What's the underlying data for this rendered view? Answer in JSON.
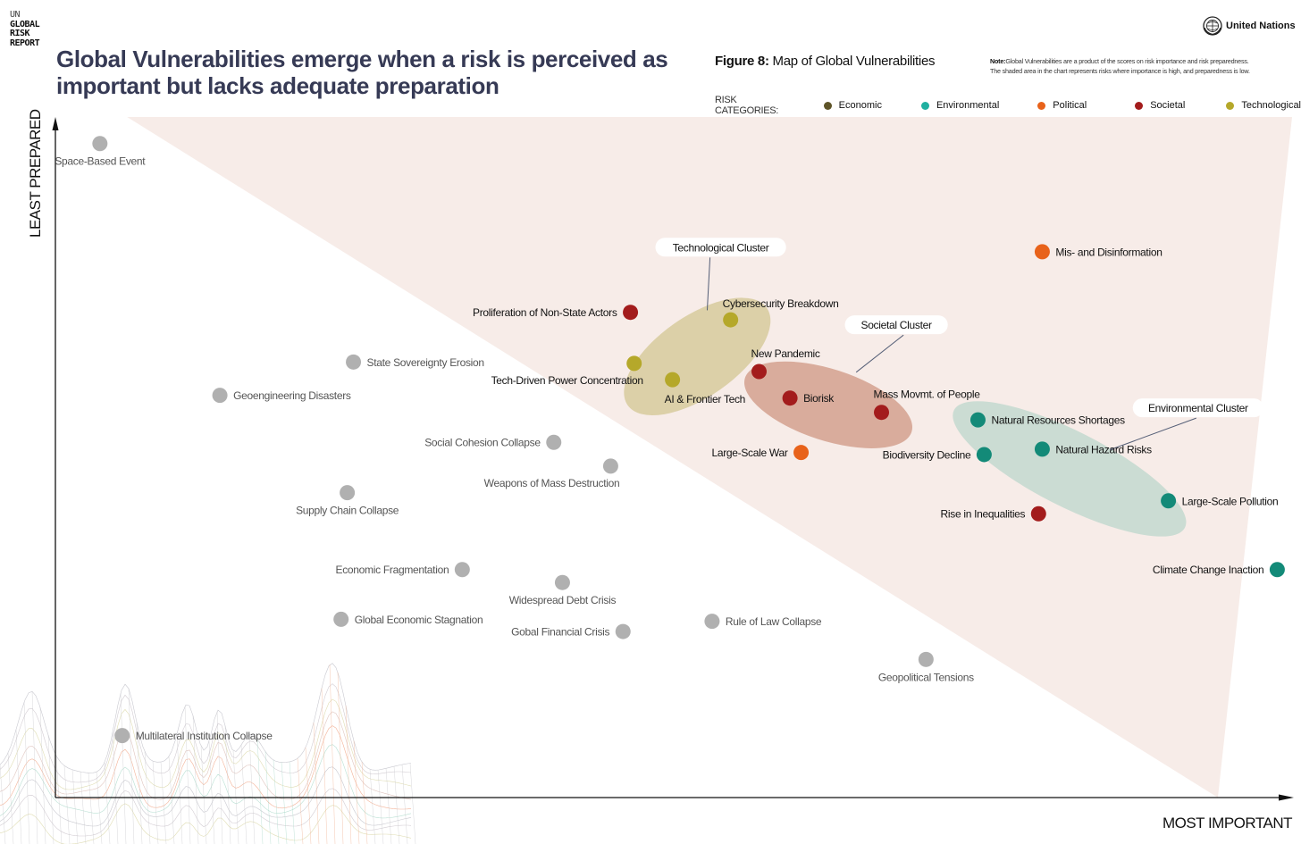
{
  "brand": {
    "line1": "UN",
    "line2": "GLOBAL",
    "line3": "RISK",
    "line4": "REPORT"
  },
  "headline": "Global Vulnerabilities emerge when a risk is perceived as important but lacks adequate preparation",
  "figure": {
    "label": "Figure 8:",
    "title": "Map of Global Vulnerabilities"
  },
  "note": {
    "label": "Note:",
    "line1": "Global Vulnerabilities are a product of the scores on risk importance and risk preparedness.",
    "line2": "The shaded area in the chart represents risks where importance is high, and preparedness is low."
  },
  "org": {
    "name": "United Nations",
    "icon": "un-emblem-icon"
  },
  "legend": {
    "title": "RISK CATEGORIES:",
    "items": [
      {
        "name": "Economic",
        "color": "#5e5428"
      },
      {
        "name": "Environmental",
        "color": "#1fb0a0"
      },
      {
        "name": "Political",
        "color": "#e8621a"
      },
      {
        "name": "Societal",
        "color": "#a31c1c"
      },
      {
        "name": "Technological",
        "color": "#b5a82a"
      }
    ]
  },
  "colors": {
    "uncategorized": "#b0b0b0",
    "Economic": "#5e5428",
    "Environmental": "#138a78",
    "Political": "#e8621a",
    "Societal": "#a31c1c",
    "Technological": "#b5a82a",
    "shade": "#f7ece8",
    "cluster_tech": "#dcd0a8",
    "cluster_soc": "#d9ac9c",
    "cluster_env": "#cbdcd3",
    "headline": "#363a55"
  },
  "chart_data": {
    "type": "scatter",
    "title": "Map of Global Vulnerabilities",
    "xlabel": "MOST IMPORTANT",
    "ylabel": "LEAST PREPARED",
    "x_range": [
      0,
      100
    ],
    "y_range": [
      0,
      100
    ],
    "axis_units": "relative score (no tick labels shown)",
    "grid": false,
    "legend_position": "top-right",
    "shaded_region": {
      "description": "High importance, low preparedness",
      "vertices": [
        [
          5.8,
          100
        ],
        [
          100,
          100
        ],
        [
          94,
          0
        ]
      ]
    },
    "points": [
      {
        "label": "Space-Based Event",
        "x": 3.6,
        "y": 96.1,
        "category": null,
        "label_pos": "below"
      },
      {
        "label": "State Sovereignty Erosion",
        "x": 24.1,
        "y": 64.0,
        "category": null,
        "label_pos": "right"
      },
      {
        "label": "Geoengineering Disasters",
        "x": 13.3,
        "y": 59.1,
        "category": null,
        "label_pos": "right"
      },
      {
        "label": "Social Cohesion Collapse",
        "x": 40.3,
        "y": 52.2,
        "category": null,
        "label_pos": "left"
      },
      {
        "label": "Weapons of Mass Destruction",
        "x": 44.9,
        "y": 48.7,
        "category": null,
        "label_pos": "below-left"
      },
      {
        "label": "Supply Chain Collapse",
        "x": 23.6,
        "y": 44.8,
        "category": null,
        "label_pos": "below"
      },
      {
        "label": "Economic Fragmentation",
        "x": 32.9,
        "y": 33.5,
        "category": null,
        "label_pos": "left"
      },
      {
        "label": "Widespread Debt Crisis",
        "x": 41.0,
        "y": 31.6,
        "category": null,
        "label_pos": "below"
      },
      {
        "label": "Global Economic Stagnation",
        "x": 23.1,
        "y": 26.2,
        "category": null,
        "label_pos": "right"
      },
      {
        "label": "Gobal Financial Crisis",
        "x": 45.9,
        "y": 24.4,
        "category": null,
        "label_pos": "left"
      },
      {
        "label": "Rule of Law Collapse",
        "x": 53.1,
        "y": 25.9,
        "category": null,
        "label_pos": "right"
      },
      {
        "label": "Geopolitical Tensions",
        "x": 70.4,
        "y": 20.3,
        "category": null,
        "label_pos": "below"
      },
      {
        "label": "Multilateral Institution Collapse",
        "x": 5.4,
        "y": 9.1,
        "category": null,
        "label_pos": "right"
      },
      {
        "label": "Proliferation of Non-State Actors",
        "x": 46.5,
        "y": 71.3,
        "category": "Societal",
        "label_pos": "left"
      },
      {
        "label": "Cybersecurity Breakdown",
        "x": 54.6,
        "y": 70.2,
        "category": "Technological",
        "label_pos": "above-right"
      },
      {
        "label": "Tech-Driven Power Concentration",
        "x": 46.8,
        "y": 63.8,
        "category": "Technological",
        "label_pos": "below-left"
      },
      {
        "label": "AI & Frontier Tech",
        "x": 49.9,
        "y": 61.4,
        "category": "Technological",
        "label_pos": "below-right"
      },
      {
        "label": "New Pandemic",
        "x": 56.9,
        "y": 62.6,
        "category": "Societal",
        "label_pos": "above-right"
      },
      {
        "label": "Biorisk",
        "x": 59.4,
        "y": 58.7,
        "category": "Societal",
        "label_pos": "right"
      },
      {
        "label": "Mass Movmt. of People",
        "x": 66.8,
        "y": 56.6,
        "category": "Societal",
        "label_pos": "above-right"
      },
      {
        "label": "Large-Scale War",
        "x": 60.3,
        "y": 50.7,
        "category": "Political",
        "label_pos": "left"
      },
      {
        "label": "Mis- and Disinformation",
        "x": 79.8,
        "y": 80.2,
        "category": "Political",
        "label_pos": "right"
      },
      {
        "label": "Natural Resources Shortages",
        "x": 74.6,
        "y": 55.5,
        "category": "Environmental",
        "label_pos": "right"
      },
      {
        "label": "Biodiversity Decline",
        "x": 75.1,
        "y": 50.4,
        "category": "Environmental",
        "label_pos": "left"
      },
      {
        "label": "Natural Hazard Risks",
        "x": 79.8,
        "y": 51.2,
        "category": "Environmental",
        "label_pos": "right"
      },
      {
        "label": "Large-Scale Pollution",
        "x": 90.0,
        "y": 43.6,
        "category": "Environmental",
        "label_pos": "right"
      },
      {
        "label": "Rise in Inequalities",
        "x": 79.5,
        "y": 41.7,
        "category": "Societal",
        "label_pos": "left"
      },
      {
        "label": "Climate Change Inaction",
        "x": 98.8,
        "y": 33.5,
        "category": "Environmental",
        "label_pos": "left"
      }
    ],
    "clusters": [
      {
        "label": "Technological Cluster",
        "category": "Technological",
        "center": [
          51.9,
          64.8
        ],
        "label_at": [
          53.8,
          80.8
        ]
      },
      {
        "label": "Societal Cluster",
        "category": "Societal",
        "center": [
          62.5,
          57.7
        ],
        "label_at": [
          68.0,
          69.4
        ]
      },
      {
        "label": "Environmental Cluster",
        "category": "Environmental",
        "center": [
          82.0,
          48.3
        ],
        "label_at": [
          92.4,
          57.2
        ]
      }
    ]
  }
}
